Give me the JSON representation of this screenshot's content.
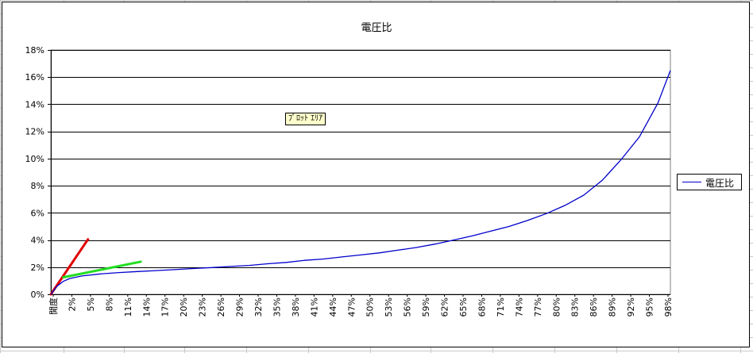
{
  "chart": {
    "title": "電圧比",
    "plot_area_tooltip": "ﾌﾟﾛｯﾄ ｴﾘｱ",
    "legend_label": "電圧比"
  },
  "colors": {
    "series": "#0000cc",
    "red_line": "#e00000",
    "green_line": "#22dd22",
    "grid": "#000000",
    "sheet_grid": "#c8c8c8"
  },
  "chart_data": {
    "type": "line",
    "title": "電圧比",
    "xlabel": "",
    "ylabel": "",
    "ylim": [
      0,
      18
    ],
    "y_ticks": [
      0,
      2,
      4,
      6,
      8,
      10,
      12,
      14,
      16,
      18
    ],
    "y_tick_labels": [
      "0%",
      "2%",
      "4%",
      "6%",
      "8%",
      "10%",
      "12%",
      "14%",
      "16%",
      "18%"
    ],
    "grid": true,
    "legend": "right",
    "x_tick_labels": [
      "開度",
      "2%",
      "5%",
      "8%",
      "11%",
      "14%",
      "17%",
      "20%",
      "23%",
      "26%",
      "29%",
      "32%",
      "35%",
      "38%",
      "41%",
      "44%",
      "47%",
      "50%",
      "53%",
      "56%",
      "59%",
      "62%",
      "65%",
      "68%",
      "71%",
      "74%",
      "77%",
      "80%",
      "83%",
      "86%",
      "89%",
      "92%",
      "95%",
      "98%"
    ],
    "series": [
      {
        "name": "電圧比",
        "x": [
          0,
          1,
          2,
          3,
          5,
          8,
          11,
          14,
          17,
          20,
          23,
          26,
          29,
          32,
          35,
          38,
          41,
          44,
          47,
          50,
          53,
          56,
          59,
          62,
          65,
          68,
          71,
          74,
          77,
          80,
          83,
          86,
          89,
          92,
          95,
          98,
          100
        ],
        "values": [
          0,
          0.6,
          0.95,
          1.15,
          1.35,
          1.5,
          1.6,
          1.68,
          1.75,
          1.82,
          1.9,
          1.97,
          2.05,
          2.13,
          2.25,
          2.35,
          2.5,
          2.6,
          2.75,
          2.9,
          3.05,
          3.25,
          3.45,
          3.7,
          4.0,
          4.3,
          4.65,
          5.0,
          5.45,
          5.95,
          6.55,
          7.3,
          8.4,
          9.9,
          11.6,
          14.1,
          16.5
        ]
      }
    ],
    "annotations": [
      {
        "type": "line",
        "color": "red",
        "x": [
          0,
          6
        ],
        "values": [
          0,
          4.05
        ]
      },
      {
        "type": "line",
        "color": "green",
        "x": [
          2,
          14.5
        ],
        "values": [
          1.25,
          2.4
        ]
      }
    ]
  }
}
